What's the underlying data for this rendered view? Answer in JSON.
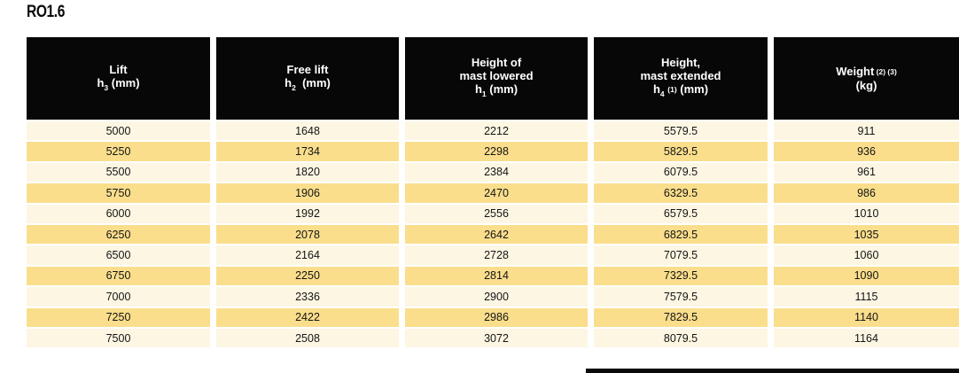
{
  "page": {
    "title": "RO1.6"
  },
  "colors": {
    "header_bg": "#070707",
    "header_text": "#ffffff",
    "row_light": "#fdf6e3",
    "row_dark": "#fade8c",
    "body_text": "#141414",
    "gap": "#ffffff"
  },
  "table": {
    "headers": [
      {
        "id": "lift",
        "lines": [
          [
            {
              "t": "Lift"
            }
          ],
          [
            {
              "t": "h"
            },
            {
              "t": "3",
              "s": "sub"
            },
            {
              "t": " (mm)"
            }
          ]
        ]
      },
      {
        "id": "free-lift",
        "lines": [
          [
            {
              "t": "Free lift"
            }
          ],
          [
            {
              "t": "h"
            },
            {
              "t": "2",
              "s": "sub"
            },
            {
              "t": "  (mm)"
            }
          ]
        ]
      },
      {
        "id": "height-mast-lowered",
        "lines": [
          [
            {
              "t": "Height of"
            }
          ],
          [
            {
              "t": "mast lowered"
            }
          ],
          [
            {
              "t": "h"
            },
            {
              "t": "1",
              "s": "sub"
            },
            {
              "t": " (mm)"
            }
          ]
        ]
      },
      {
        "id": "height-mast-extended",
        "lines": [
          [
            {
              "t": "Height,"
            }
          ],
          [
            {
              "t": "mast extended"
            }
          ],
          [
            {
              "t": "h"
            },
            {
              "t": "4",
              "s": "sub"
            },
            {
              "t": " "
            },
            {
              "t": "(1)",
              "s": "note"
            },
            {
              "t": " (mm)"
            }
          ]
        ]
      },
      {
        "id": "weight",
        "lines": [
          [
            {
              "t": "Weight"
            },
            {
              "t": " (2) (3)",
              "s": "note"
            }
          ],
          [
            {
              "t": "(kg)"
            }
          ]
        ]
      }
    ],
    "rows": [
      [
        "5000",
        "1648",
        "2212",
        "5579.5",
        "911"
      ],
      [
        "5250",
        "1734",
        "2298",
        "5829.5",
        "936"
      ],
      [
        "5500",
        "1820",
        "2384",
        "6079.5",
        "961"
      ],
      [
        "5750",
        "1906",
        "2470",
        "6329.5",
        "986"
      ],
      [
        "6000",
        "1992",
        "2556",
        "6579.5",
        "1010"
      ],
      [
        "6250",
        "2078",
        "2642",
        "6829.5",
        "1035"
      ],
      [
        "6500",
        "2164",
        "2728",
        "7079.5",
        "1060"
      ],
      [
        "6750",
        "2250",
        "2814",
        "7329.5",
        "1090"
      ],
      [
        "7000",
        "2336",
        "2900",
        "7579.5",
        "1115"
      ],
      [
        "7250",
        "2422",
        "2986",
        "7829.5",
        "1140"
      ],
      [
        "7500",
        "2508",
        "3072",
        "8079.5",
        "1164"
      ]
    ]
  }
}
